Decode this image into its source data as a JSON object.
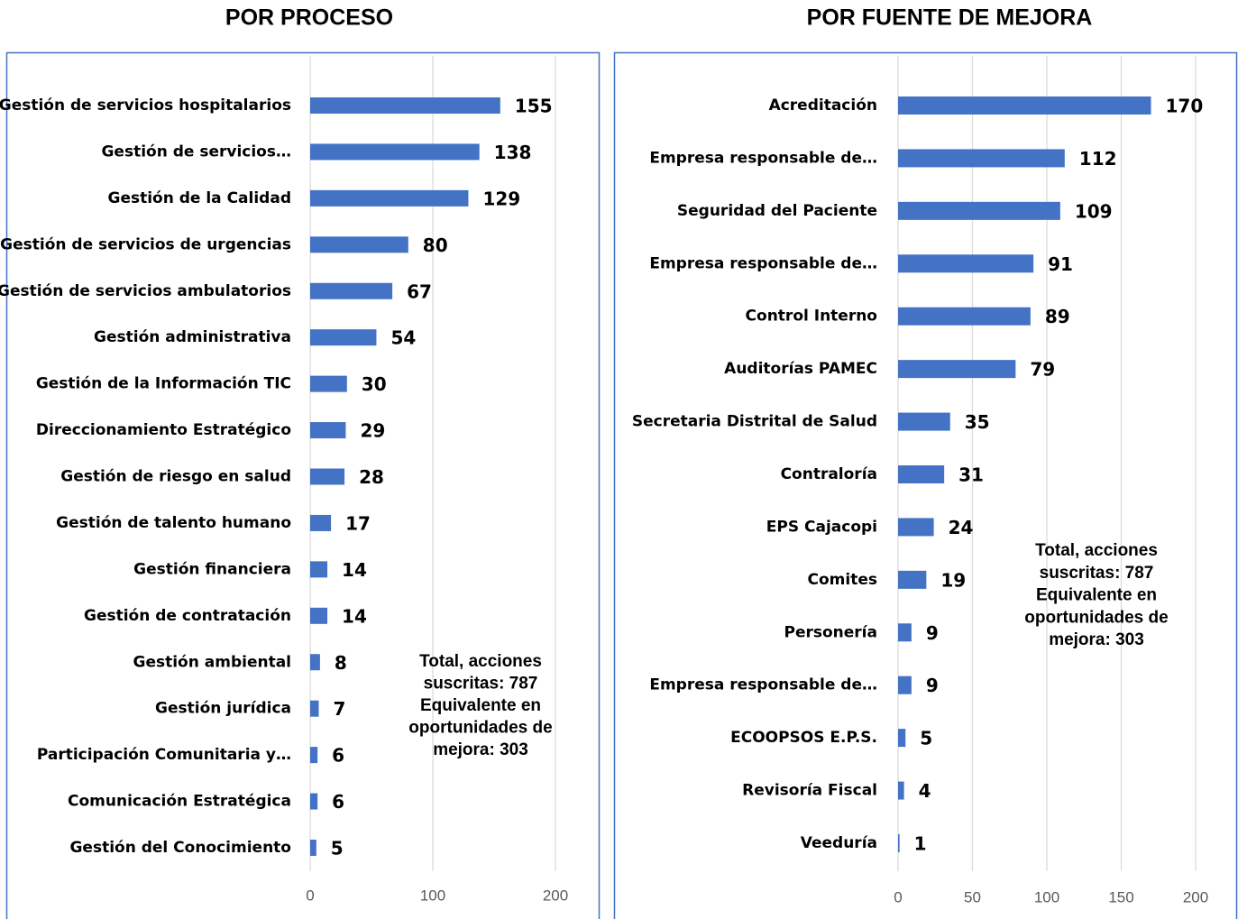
{
  "chart_data": [
    {
      "type": "bar",
      "orientation": "horizontal",
      "title": "POR PROCESO",
      "categories": [
        "Gestión de servicios hospitalarios",
        "Gestión de servicios…",
        "Gestión de la Calidad",
        "Gestión de servicios de urgencias",
        "Gestión de servicios ambulatorios",
        "Gestión administrativa",
        "Gestión de la Información TIC",
        "Direccionamiento Estratégico",
        "Gestión de riesgo en salud",
        "Gestión de talento humano",
        "Gestión financiera",
        "Gestión de contratación",
        "Gestión ambiental",
        "Gestión jurídica",
        "Participación Comunitaria y…",
        "Comunicación Estratégica",
        "Gestión del Conocimiento"
      ],
      "values": [
        155,
        138,
        129,
        80,
        67,
        54,
        30,
        29,
        28,
        17,
        14,
        14,
        8,
        7,
        6,
        6,
        5
      ],
      "color": "#4472c4",
      "xlim": [
        0,
        200
      ],
      "xticks": [
        0,
        100,
        200
      ],
      "grid": true,
      "annotation": [
        "Total, acciones",
        "suscritas: 787",
        "Equivalente en",
        "oportunidades de",
        "mejora: 303"
      ]
    },
    {
      "type": "bar",
      "orientation": "horizontal",
      "title": "POR FUENTE DE MEJORA",
      "categories": [
        "Acreditación",
        "Empresa responsable de…",
        "Seguridad del Paciente",
        "Empresa responsable de…",
        "Control Interno",
        "Auditorías PAMEC",
        "Secretaria Distrital de Salud",
        "Contraloría",
        "EPS Cajacopi",
        "Comites",
        "Personería",
        "Empresa responsable de…",
        "ECOOPSOS E.P.S.",
        "Revisoría Fiscal",
        "Veeduría"
      ],
      "values": [
        170,
        112,
        109,
        91,
        89,
        79,
        35,
        31,
        24,
        19,
        9,
        9,
        5,
        4,
        1
      ],
      "color": "#4472c4",
      "xlim": [
        0,
        200
      ],
      "xticks": [
        0,
        50,
        100,
        150,
        200
      ],
      "grid": true,
      "annotation": [
        "Total, acciones",
        "suscritas: 787",
        "Equivalente en",
        "oportunidades de",
        "mejora: 303"
      ]
    }
  ]
}
